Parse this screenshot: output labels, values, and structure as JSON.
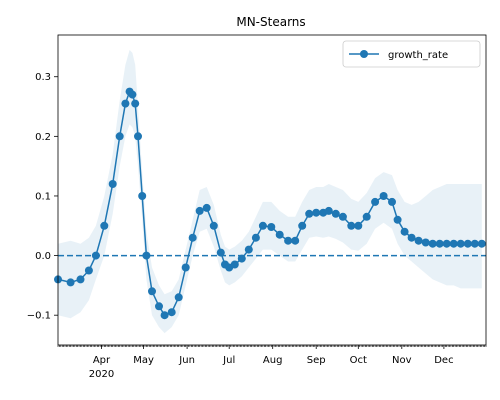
{
  "chart_data": {
    "type": "line",
    "title": "MN-Stearns",
    "xlabel": "",
    "ylabel": "",
    "legend": {
      "entries": [
        "growth_rate"
      ],
      "position": "top-right"
    },
    "x_range": [
      "2020-03-01",
      "2020-12-31"
    ],
    "ylim": [
      -0.15,
      0.37
    ],
    "yticks": [
      -0.1,
      0.0,
      0.1,
      0.2,
      0.3
    ],
    "ytick_labels": [
      "−0.1",
      "0.0",
      "0.1",
      "0.2",
      "0.3"
    ],
    "xticks": [
      {
        "date": "2020-04-01",
        "label": "Apr",
        "sublabel": "2020"
      },
      {
        "date": "2020-05-01",
        "label": "May"
      },
      {
        "date": "2020-06-01",
        "label": "Jun"
      },
      {
        "date": "2020-07-01",
        "label": "Jul"
      },
      {
        "date": "2020-08-01",
        "label": "Aug"
      },
      {
        "date": "2020-09-01",
        "label": "Sep"
      },
      {
        "date": "2020-10-01",
        "label": "Oct"
      },
      {
        "date": "2020-11-01",
        "label": "Nov"
      },
      {
        "date": "2020-12-01",
        "label": "Dec"
      }
    ],
    "reference_line": {
      "y": 0.0,
      "style": "dashed"
    },
    "colors": {
      "series": "#1f77b4",
      "band": "#1f77b4",
      "band_opacity": 0.1
    },
    "series": [
      {
        "name": "growth_rate",
        "x": [
          "2020-03-01",
          "2020-03-10",
          "2020-03-17",
          "2020-03-23",
          "2020-03-28",
          "2020-04-03",
          "2020-04-09",
          "2020-04-14",
          "2020-04-18",
          "2020-04-21",
          "2020-04-23",
          "2020-04-25",
          "2020-04-27",
          "2020-04-30",
          "2020-05-03",
          "2020-05-07",
          "2020-05-12",
          "2020-05-16",
          "2020-05-21",
          "2020-05-26",
          "2020-05-31",
          "2020-06-05",
          "2020-06-10",
          "2020-06-15",
          "2020-06-20",
          "2020-06-25",
          "2020-06-28",
          "2020-07-01",
          "2020-07-05",
          "2020-07-10",
          "2020-07-15",
          "2020-07-20",
          "2020-07-25",
          "2020-07-31",
          "2020-08-06",
          "2020-08-12",
          "2020-08-17",
          "2020-08-22",
          "2020-08-27",
          "2020-09-01",
          "2020-09-06",
          "2020-09-10",
          "2020-09-15",
          "2020-09-20",
          "2020-09-26",
          "2020-10-01",
          "2020-10-07",
          "2020-10-13",
          "2020-10-19",
          "2020-10-25",
          "2020-10-29",
          "2020-11-03",
          "2020-11-08",
          "2020-11-13",
          "2020-11-18",
          "2020-11-23",
          "2020-11-28",
          "2020-12-03",
          "2020-12-08",
          "2020-12-13",
          "2020-12-18",
          "2020-12-23",
          "2020-12-28"
        ],
        "values": [
          -0.04,
          -0.045,
          -0.04,
          -0.025,
          0.0,
          0.05,
          0.12,
          0.2,
          0.255,
          0.275,
          0.27,
          0.255,
          0.2,
          0.1,
          0.0,
          -0.06,
          -0.085,
          -0.1,
          -0.095,
          -0.07,
          -0.02,
          0.03,
          0.075,
          0.08,
          0.05,
          0.005,
          -0.015,
          -0.02,
          -0.015,
          -0.005,
          0.01,
          0.03,
          0.05,
          0.048,
          0.035,
          0.025,
          0.025,
          0.05,
          0.07,
          0.072,
          0.072,
          0.075,
          0.07,
          0.065,
          0.05,
          0.05,
          0.065,
          0.09,
          0.1,
          0.09,
          0.06,
          0.04,
          0.03,
          0.025,
          0.022,
          0.02,
          0.02,
          0.02,
          0.02,
          0.02,
          0.02,
          0.02,
          0.02
        ],
        "lower": [
          -0.1,
          -0.105,
          -0.095,
          -0.075,
          -0.04,
          0.0,
          0.07,
          0.15,
          0.2,
          0.22,
          0.215,
          0.2,
          0.15,
          0.06,
          -0.04,
          -0.1,
          -0.12,
          -0.13,
          -0.12,
          -0.1,
          -0.05,
          0.0,
          0.04,
          0.045,
          0.015,
          -0.025,
          -0.045,
          -0.05,
          -0.045,
          -0.035,
          -0.02,
          -0.005,
          0.01,
          0.01,
          0.0,
          -0.01,
          -0.01,
          0.01,
          0.03,
          0.032,
          0.03,
          0.032,
          0.028,
          0.022,
          0.01,
          0.008,
          0.02,
          0.045,
          0.055,
          0.045,
          0.02,
          0.0,
          -0.01,
          -0.02,
          -0.03,
          -0.04,
          -0.045,
          -0.05,
          -0.05,
          -0.055,
          -0.055,
          -0.055,
          -0.055
        ],
        "upper": [
          0.02,
          0.025,
          0.02,
          0.03,
          0.05,
          0.1,
          0.17,
          0.26,
          0.32,
          0.345,
          0.34,
          0.32,
          0.25,
          0.14,
          0.04,
          -0.02,
          -0.05,
          -0.065,
          -0.06,
          -0.04,
          0.01,
          0.06,
          0.11,
          0.115,
          0.085,
          0.035,
          0.015,
          0.01,
          0.015,
          0.025,
          0.04,
          0.065,
          0.09,
          0.09,
          0.075,
          0.065,
          0.065,
          0.09,
          0.11,
          0.115,
          0.115,
          0.12,
          0.115,
          0.11,
          0.095,
          0.09,
          0.105,
          0.13,
          0.14,
          0.135,
          0.11,
          0.09,
          0.085,
          0.09,
          0.1,
          0.11,
          0.115,
          0.12,
          0.12,
          0.12,
          0.12,
          0.12,
          0.12
        ]
      }
    ]
  }
}
